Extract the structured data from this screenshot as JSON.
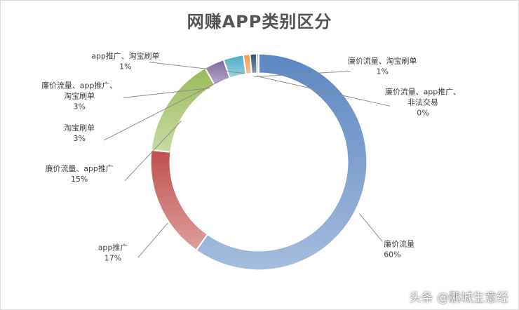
{
  "chart_data": {
    "type": "pie",
    "title": "网赚APP类别区分",
    "slices": [
      {
        "label_lines": [
          "廉价流量"
        ],
        "pct_label": "60%",
        "value": 60,
        "color": "#5b86c1"
      },
      {
        "label_lines": [
          "app推广"
        ],
        "pct_label": "17%",
        "value": 17,
        "color": "#c0504d"
      },
      {
        "label_lines": [
          "廉价流量、app推广"
        ],
        "pct_label": "15%",
        "value": 15,
        "color": "#9bbb59"
      },
      {
        "label_lines": [
          "淘宝刷单"
        ],
        "pct_label": "3%",
        "value": 3,
        "color": "#8064a2"
      },
      {
        "label_lines": [
          "廉价流量、app推广、",
          "淘宝刷单"
        ],
        "pct_label": "3%",
        "value": 3,
        "color": "#4bacc6"
      },
      {
        "label_lines": [
          "app推广、淘宝刷单"
        ],
        "pct_label": "1%",
        "value": 1,
        "color": "#f79646"
      },
      {
        "label_lines": [
          "廉价流量、淘宝刷单"
        ],
        "pct_label": "1%",
        "value": 1,
        "color": "#2c4d75"
      },
      {
        "label_lines": [
          "廉价流量、app推广、",
          "非法交易"
        ],
        "pct_label": "0%",
        "value": 0.3,
        "color": "#6f95c6"
      }
    ],
    "legend": "none"
  },
  "watermark": "头条 @鹏城生意经"
}
